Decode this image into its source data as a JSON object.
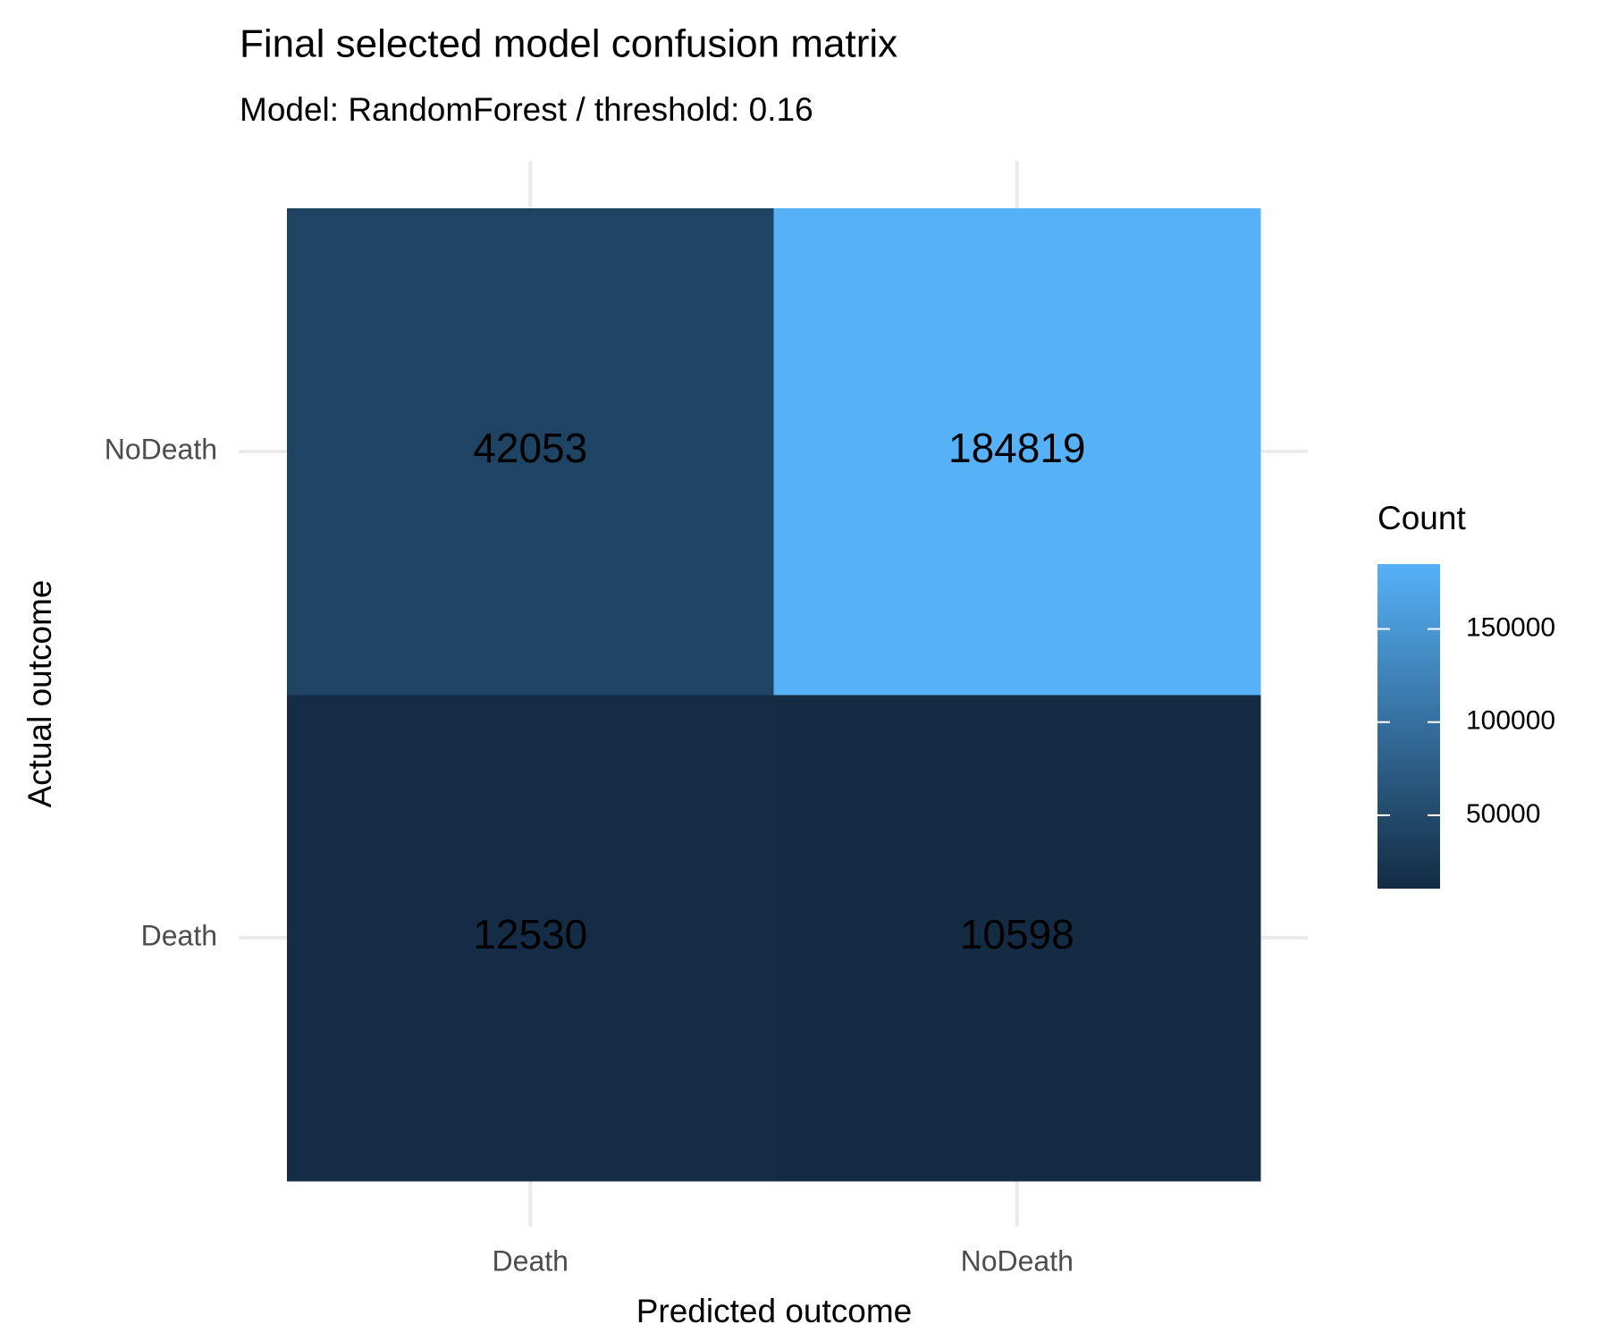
{
  "chart_data": {
    "type": "heatmap",
    "title": "Final selected model confusion matrix",
    "subtitle": "Model: RandomForest / threshold: 0.16",
    "x_label": "Predicted outcome",
    "y_label": "Actual outcome",
    "x_categories": [
      "Death",
      "NoDeath"
    ],
    "y_categories": [
      "Death",
      "NoDeath"
    ],
    "values": [
      [
        12530,
        10598
      ],
      [
        42053,
        184819
      ]
    ],
    "legend_title": "Count",
    "color_low": "#132B43",
    "color_high": "#56B1F7",
    "cticks": [
      50000,
      100000,
      150000
    ]
  }
}
